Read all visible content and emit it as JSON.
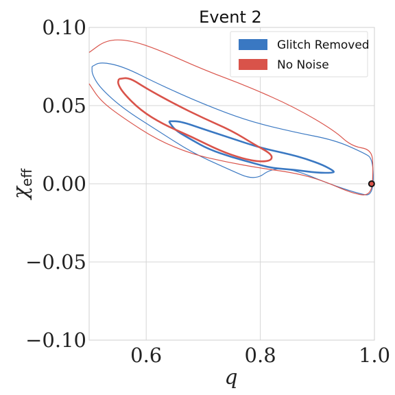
{
  "chart_data": {
    "type": "contour",
    "title": "Event 2",
    "xlabel": "q",
    "ylabel": "χ",
    "ylabel_sub": "eff",
    "xlim": [
      0.5,
      1.0
    ],
    "ylim": [
      -0.1,
      0.1
    ],
    "xticks": [
      "0.6",
      "0.8",
      "1.0"
    ],
    "yticks": [
      "0.10",
      "0.05",
      "0.00",
      "−0.05",
      "−0.10"
    ],
    "grid": true,
    "legend_position": "top-right",
    "colors": {
      "glitch_removed": "#3a78c2",
      "no_noise": "#d9534a",
      "marker": "#111111"
    },
    "series": [
      {
        "name": "Glitch Removed",
        "color": "#3a78c2",
        "contours": [
          {
            "level": "inner",
            "points": [
              [
                0.64,
                0.04
              ],
              [
                0.66,
                0.04
              ],
              [
                0.7,
                0.035
              ],
              [
                0.75,
                0.029
              ],
              [
                0.8,
                0.023
              ],
              [
                0.85,
                0.019
              ],
              [
                0.88,
                0.016
              ],
              [
                0.91,
                0.012
              ],
              [
                0.93,
                0.008
              ],
              [
                0.927,
                0.007
              ],
              [
                0.9,
                0.007
              ],
              [
                0.86,
                0.009
              ],
              [
                0.82,
                0.01
              ],
              [
                0.79,
                0.013
              ],
              [
                0.75,
                0.017
              ],
              [
                0.71,
                0.022
              ],
              [
                0.68,
                0.028
              ],
              [
                0.652,
                0.034
              ],
              [
                0.643,
                0.038
              ],
              [
                0.64,
                0.04
              ]
            ]
          },
          {
            "level": "outer",
            "points": [
              [
                0.505,
                0.075
              ],
              [
                0.52,
                0.078
              ],
              [
                0.56,
                0.075
              ],
              [
                0.62,
                0.064
              ],
              [
                0.7,
                0.051
              ],
              [
                0.78,
                0.04
              ],
              [
                0.86,
                0.033
              ],
              [
                0.93,
                0.028
              ],
              [
                0.98,
                0.02
              ],
              [
                0.998,
                0.016
              ],
              [
                0.998,
                -0.008
              ],
              [
                0.97,
                -0.006
              ],
              [
                0.92,
                0.0
              ],
              [
                0.86,
                0.009
              ],
              [
                0.82,
                0.01
              ],
              [
                0.79,
                0.002
              ],
              [
                0.74,
                0.01
              ],
              [
                0.68,
                0.02
              ],
              [
                0.62,
                0.034
              ],
              [
                0.56,
                0.048
              ],
              [
                0.52,
                0.061
              ],
              [
                0.505,
                0.07
              ],
              [
                0.505,
                0.075
              ]
            ]
          }
        ]
      },
      {
        "name": "No Noise",
        "color": "#d9534a",
        "contours": [
          {
            "level": "inner",
            "points": [
              [
                0.552,
                0.067
              ],
              [
                0.57,
                0.068
              ],
              [
                0.6,
                0.061
              ],
              [
                0.65,
                0.051
              ],
              [
                0.7,
                0.042
              ],
              [
                0.75,
                0.034
              ],
              [
                0.79,
                0.025
              ],
              [
                0.82,
                0.019
              ],
              [
                0.82,
                0.015
              ],
              [
                0.8,
                0.014
              ],
              [
                0.77,
                0.016
              ],
              [
                0.73,
                0.021
              ],
              [
                0.68,
                0.03
              ],
              [
                0.63,
                0.038
              ],
              [
                0.59,
                0.047
              ],
              [
                0.56,
                0.058
              ],
              [
                0.55,
                0.064
              ],
              [
                0.552,
                0.067
              ]
            ]
          },
          {
            "level": "outer",
            "points": [
              [
                0.5,
                0.084
              ],
              [
                0.53,
                0.092
              ],
              [
                0.57,
                0.092
              ],
              [
                0.62,
                0.086
              ],
              [
                0.7,
                0.073
              ],
              [
                0.78,
                0.062
              ],
              [
                0.86,
                0.049
              ],
              [
                0.93,
                0.034
              ],
              [
                0.96,
                0.024
              ],
              [
                0.995,
                0.022
              ],
              [
                0.998,
                0.01
              ],
              [
                0.995,
                -0.008
              ],
              [
                0.96,
                -0.006
              ],
              [
                0.91,
                0.002
              ],
              [
                0.86,
                0.007
              ],
              [
                0.8,
                0.01
              ],
              [
                0.74,
                0.014
              ],
              [
                0.68,
                0.019
              ],
              [
                0.62,
                0.028
              ],
              [
                0.56,
                0.042
              ],
              [
                0.52,
                0.053
              ],
              [
                0.5,
                0.064
              ]
            ]
          }
        ]
      }
    ],
    "marker": {
      "x": 0.995,
      "y": 0.0
    }
  }
}
